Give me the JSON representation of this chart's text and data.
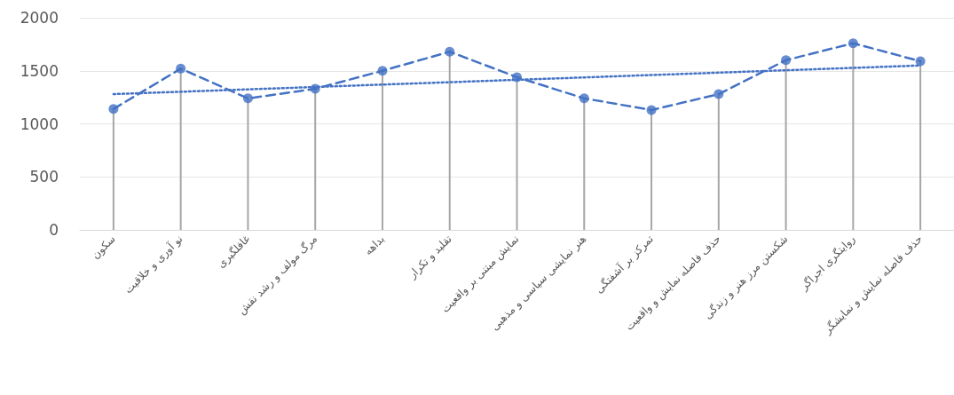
{
  "chart_data": {
    "type": "lollipop",
    "categories": [
      "سکون",
      "نو آوری و خلاقیت",
      "غافلگیری",
      "مرگ مولف و رشد نقش",
      "بداهه",
      "تقلید و تکرار",
      "نمایش مبتنی بر واقعیت",
      "هنر نمایشی سیاسی و مذهبی",
      "تمرکز بر آشفتگی",
      "حذف فاصله نمایش و واقعیت",
      "شکستن مرز هنر و زندگی",
      "روایتگری اجراگر",
      "حذف فاصله نمایش و نمایشگر"
    ],
    "series": [
      {
        "color": "#4472c4",
        "marker": "circle",
        "values": [
          1140,
          1520,
          1240,
          1330,
          1500,
          1680,
          1440,
          1240,
          1130,
          1280,
          1600,
          1760,
          1590
        ]
      },
      {
        "type": "line",
        "color": "#4472c4",
        "line_style": "dashed",
        "marker": "none",
        "values": [
          1140,
          1520,
          1240,
          1330,
          1500,
          1680,
          1440,
          1240,
          1130,
          1280,
          1600,
          1760,
          1590
        ]
      },
      {
        "type": "line",
        "color": "#4472c4",
        "line_style": "dotted",
        "marker": "none",
        "x": [
          "سکون",
          "حذف فاصله نمایش و نمایشگر"
        ],
        "values": [
          1280,
          1550
        ]
      }
    ],
    "ylim": [
      0,
      2000
    ],
    "yticks": [
      0,
      500,
      1000,
      1500,
      2000
    ],
    "grid": "y"
  }
}
